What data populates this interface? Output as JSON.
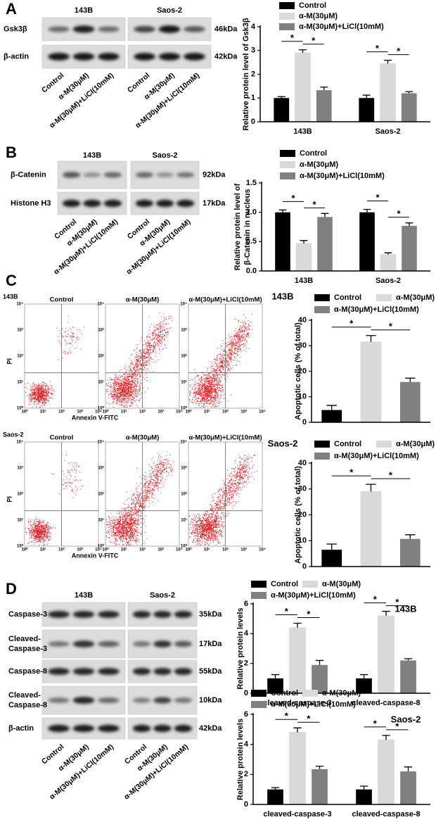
{
  "panels": [
    {
      "letter": "A",
      "blot": {
        "groups": [
          "143B",
          "Saos-2"
        ],
        "rows": [
          {
            "name": "Gsk3β",
            "size": "46kDa"
          },
          {
            "name": "β-actin",
            "size": "42kDa"
          }
        ],
        "lanes": [
          "Control",
          "α-M(30μM)",
          "α-M(30μM)+LiCl(10mM)"
        ]
      }
    },
    {
      "letter": "B",
      "blot": {
        "groups": [
          "143B",
          "Saos-2"
        ],
        "rows": [
          {
            "name": "β-Catenin",
            "size": "92kDa"
          },
          {
            "name": "Histone H3",
            "size": "17kDa"
          }
        ],
        "lanes": [
          "Control",
          "α-M(30μM)",
          "α-M(30μM)+LiCl(10mM)"
        ]
      }
    },
    {
      "letter": "D",
      "blot": {
        "groups": [
          "143B",
          "Saos-2"
        ],
        "rows": [
          {
            "name": "Caspase-3",
            "size": "35kDa"
          },
          {
            "name": [
              "Cleaved-",
              "Caspase-3"
            ],
            "size": "17kDa"
          },
          {
            "name": "Caspase-8",
            "size": "55kDa"
          },
          {
            "name": [
              "Cleaved-",
              "Caspase-8"
            ],
            "size": "10kDa"
          },
          {
            "name": "β-actin",
            "size": "42kDa"
          }
        ],
        "lanes": [
          "Control",
          "α-M(30μM)",
          "α-M(30μM)+LiCl(10mM)"
        ]
      }
    }
  ],
  "flow": {
    "letter": "C",
    "rows": [
      {
        "cell": "143B"
      },
      {
        "cell": "Saos-2"
      }
    ],
    "conditions": [
      "Control",
      "α-M(30μM)",
      "α-M(30μM)+LiCl(10mM)"
    ],
    "ylabel": "PI",
    "xlabel": "Annexin V-FITC",
    "ticks": [
      "10⁰",
      "10¹",
      "10²",
      "10³",
      "10⁴"
    ]
  },
  "chart_data": [
    {
      "type": "bar",
      "ylabel": "Relative protein level of Gsk3β",
      "categories": [
        "143B",
        "Saos-2"
      ],
      "series": [
        {
          "name": "Control",
          "color": "#000000",
          "values": [
            1.0,
            1.0
          ],
          "errors": [
            0.06,
            0.12
          ]
        },
        {
          "name": "α-M(30μM)",
          "color": "#d9d9d9",
          "values": [
            2.9,
            2.45
          ],
          "errors": [
            0.13,
            0.14
          ]
        },
        {
          "name": "α-M(30μM)+LiCl(10mM)",
          "color": "#808080",
          "values": [
            1.33,
            1.2
          ],
          "errors": [
            0.13,
            0.07
          ]
        }
      ],
      "ylim": [
        0,
        4
      ],
      "yticks": [
        0,
        1,
        2,
        3,
        4
      ],
      "significance": [
        {
          "label": "*",
          "category": 0,
          "bars": [
            0,
            1
          ]
        },
        {
          "label": "*",
          "category": 0,
          "bars": [
            1,
            2
          ]
        },
        {
          "label": "*",
          "category": 1,
          "bars": [
            0,
            1
          ]
        },
        {
          "label": "*",
          "category": 1,
          "bars": [
            1,
            2
          ]
        }
      ]
    },
    {
      "type": "bar",
      "ylabel": [
        "Relative protein level of",
        "β-Catenin in nucleus"
      ],
      "categories": [
        "143B",
        "Saos-2"
      ],
      "series": [
        {
          "name": "Control",
          "color": "#000000",
          "values": [
            1.0,
            1.0
          ],
          "errors": [
            0.04,
            0.05
          ]
        },
        {
          "name": "α-M(30μM)",
          "color": "#d9d9d9",
          "values": [
            0.47,
            0.28
          ],
          "errors": [
            0.05,
            0.03
          ]
        },
        {
          "name": "α-M(30μM)+LiCl(10mM)",
          "color": "#808080",
          "values": [
            0.92,
            0.77
          ],
          "errors": [
            0.06,
            0.05
          ]
        }
      ],
      "ylim": [
        0,
        1.5
      ],
      "yticks": [
        {
          "value": 0,
          "label": "0.0"
        },
        {
          "value": 0.5,
          "label": "0.5"
        },
        {
          "value": 1,
          "label": "1.0"
        },
        {
          "value": 1.5,
          "label": "1.5"
        }
      ],
      "significance": [
        {
          "label": "*",
          "category": 0,
          "bars": [
            0,
            1
          ]
        },
        {
          "label": "*",
          "category": 0,
          "bars": [
            1,
            2
          ]
        },
        {
          "label": "*",
          "category": 1,
          "bars": [
            0,
            1
          ]
        },
        {
          "label": "*",
          "category": 1,
          "bars": [
            1,
            2
          ]
        }
      ]
    },
    {
      "type": "bar",
      "title": "143B",
      "ylabel": "Apoptotic cells (% of total)",
      "categories": [
        null
      ],
      "series": [
        {
          "name": "Control",
          "color": "#000000",
          "values": [
            4.8
          ],
          "errors": [
            1.8
          ]
        },
        {
          "name": "α-M(30μM)",
          "color": "#d9d9d9",
          "values": [
            31.5
          ],
          "errors": [
            2.5
          ]
        },
        {
          "name": "α-M(30μM)+LiCl(10mM)",
          "color": "#808080",
          "values": [
            15.8
          ],
          "errors": [
            1.5
          ]
        }
      ],
      "ylim": [
        0,
        40
      ],
      "yticks": [
        0,
        10,
        20,
        30,
        40
      ],
      "significance": [
        {
          "label": "*",
          "category": 0,
          "bars": [
            0,
            1
          ]
        },
        {
          "label": "*",
          "category": 0,
          "bars": [
            1,
            2
          ]
        }
      ]
    },
    {
      "type": "bar",
      "title": "Saos-2",
      "ylabel": "Apoptotic cells (% of total)",
      "categories": [
        null
      ],
      "series": [
        {
          "name": "Control",
          "color": "#000000",
          "values": [
            6.5
          ],
          "errors": [
            2.2
          ]
        },
        {
          "name": "α-M(30μM)",
          "color": "#d9d9d9",
          "values": [
            29
          ],
          "errors": [
            2.8
          ]
        },
        {
          "name": "α-M(30μM)+LiCl(10mM)",
          "color": "#808080",
          "values": [
            10.7
          ],
          "errors": [
            1.6
          ]
        }
      ],
      "ylim": [
        0,
        40
      ],
      "yticks": [
        0,
        10,
        20,
        30,
        40
      ],
      "significance": [
        {
          "label": "*",
          "category": 0,
          "bars": [
            0,
            1
          ]
        },
        {
          "label": "*",
          "category": 0,
          "bars": [
            1,
            2
          ]
        }
      ]
    },
    {
      "type": "bar",
      "title": "143B",
      "ylabel": "Relative protein levels",
      "categories": [
        "cleaved-caspase-3",
        "cleaved-caspase-8"
      ],
      "series": [
        {
          "name": "Control",
          "color": "#000000",
          "values": [
            1.0,
            1.0
          ],
          "errors": [
            0.25,
            0.25
          ]
        },
        {
          "name": "α-M(30μM)",
          "color": "#d9d9d9",
          "values": [
            4.4,
            5.2
          ],
          "errors": [
            0.3,
            0.3
          ]
        },
        {
          "name": "α-M(30μM)+LiCl(10mM)",
          "color": "#808080",
          "values": [
            1.9,
            2.2
          ],
          "errors": [
            0.3,
            0.12
          ]
        }
      ],
      "ylim": [
        0,
        6
      ],
      "yticks": [
        0,
        2,
        4,
        6
      ],
      "significance": [
        {
          "label": "*",
          "category": 0,
          "bars": [
            0,
            1
          ]
        },
        {
          "label": "*",
          "category": 0,
          "bars": [
            1,
            2
          ]
        },
        {
          "label": "*",
          "category": 1,
          "bars": [
            0,
            1
          ]
        },
        {
          "label": "*",
          "category": 1,
          "bars": [
            1,
            2
          ]
        }
      ]
    },
    {
      "type": "bar",
      "title": "Saos-2",
      "ylabel": "Relative protein levels",
      "categories": [
        "cleaved-caspase-3",
        "cleaved-caspase-8"
      ],
      "series": [
        {
          "name": "Control",
          "color": "#000000",
          "values": [
            1.0,
            1.0
          ],
          "errors": [
            0.12,
            0.22
          ]
        },
        {
          "name": "α-M(30μM)",
          "color": "#d9d9d9",
          "values": [
            4.8,
            4.3
          ],
          "errors": [
            0.3,
            0.3
          ]
        },
        {
          "name": "α-M(30μM)+LiCl(10mM)",
          "color": "#808080",
          "values": [
            2.35,
            2.2
          ],
          "errors": [
            0.2,
            0.3
          ]
        }
      ],
      "ylim": [
        0,
        6
      ],
      "yticks": [
        0,
        2,
        4,
        6
      ],
      "significance": [
        {
          "label": "*",
          "category": 0,
          "bars": [
            0,
            1
          ]
        },
        {
          "label": "*",
          "category": 0,
          "bars": [
            1,
            2
          ]
        },
        {
          "label": "*",
          "category": 1,
          "bars": [
            0,
            1
          ]
        },
        {
          "label": "*",
          "category": 1,
          "bars": [
            1,
            2
          ]
        }
      ]
    }
  ]
}
